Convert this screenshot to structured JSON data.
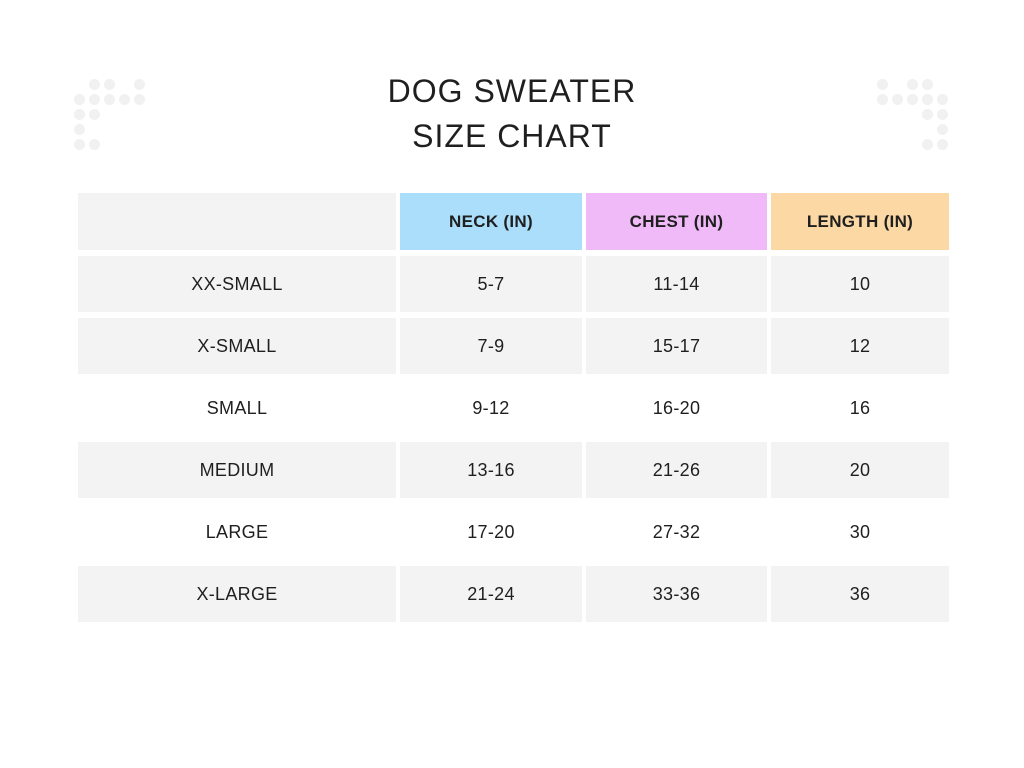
{
  "title": {
    "line1": "DOG SWEATER",
    "line2": "SIZE CHART"
  },
  "chart_data": {
    "type": "table",
    "title": "DOG SWEATER SIZE CHART",
    "columns": [
      "NECK (IN)",
      "CHEST (IN)",
      "LENGTH (IN)"
    ],
    "rows": [
      {
        "size": "XX-SMALL",
        "values": [
          "5-7",
          "11-14",
          "10"
        ]
      },
      {
        "size": "X-SMALL",
        "values": [
          "7-9",
          "15-17",
          "12"
        ]
      },
      {
        "size": "SMALL",
        "values": [
          "9-12",
          "16-20",
          "16"
        ]
      },
      {
        "size": "MEDIUM",
        "values": [
          "13-16",
          "21-26",
          "20"
        ]
      },
      {
        "size": "LARGE",
        "values": [
          "17-20",
          "27-32",
          "30"
        ]
      },
      {
        "size": "X-LARGE",
        "values": [
          "21-24",
          "33-36",
          "36"
        ]
      }
    ]
  },
  "style": {
    "background": "#ffffff",
    "text_color": "#1f1f1f",
    "header_colors": [
      "#aadefa",
      "#f0b9f8",
      "#fcd9a4"
    ],
    "corner_color": "#f3f3f3",
    "row_shade_color": "#f3f3f3",
    "shaded_rows": [
      true,
      true,
      false,
      true,
      false,
      true
    ]
  },
  "decorations": {
    "dot_color": "#f1f1f1",
    "left_dots": [
      [
        0,
        1,
        1,
        0,
        1
      ],
      [
        1,
        1,
        1,
        1,
        1
      ],
      [
        1,
        1,
        0,
        0,
        0
      ],
      [
        1,
        0,
        0,
        0,
        0
      ],
      [
        1,
        1,
        0,
        0,
        0
      ]
    ],
    "right_dots": [
      [
        1,
        0,
        1,
        1,
        0
      ],
      [
        1,
        1,
        1,
        1,
        1
      ],
      [
        0,
        0,
        0,
        1,
        1
      ],
      [
        0,
        0,
        0,
        0,
        1
      ],
      [
        0,
        0,
        0,
        1,
        1
      ]
    ]
  }
}
